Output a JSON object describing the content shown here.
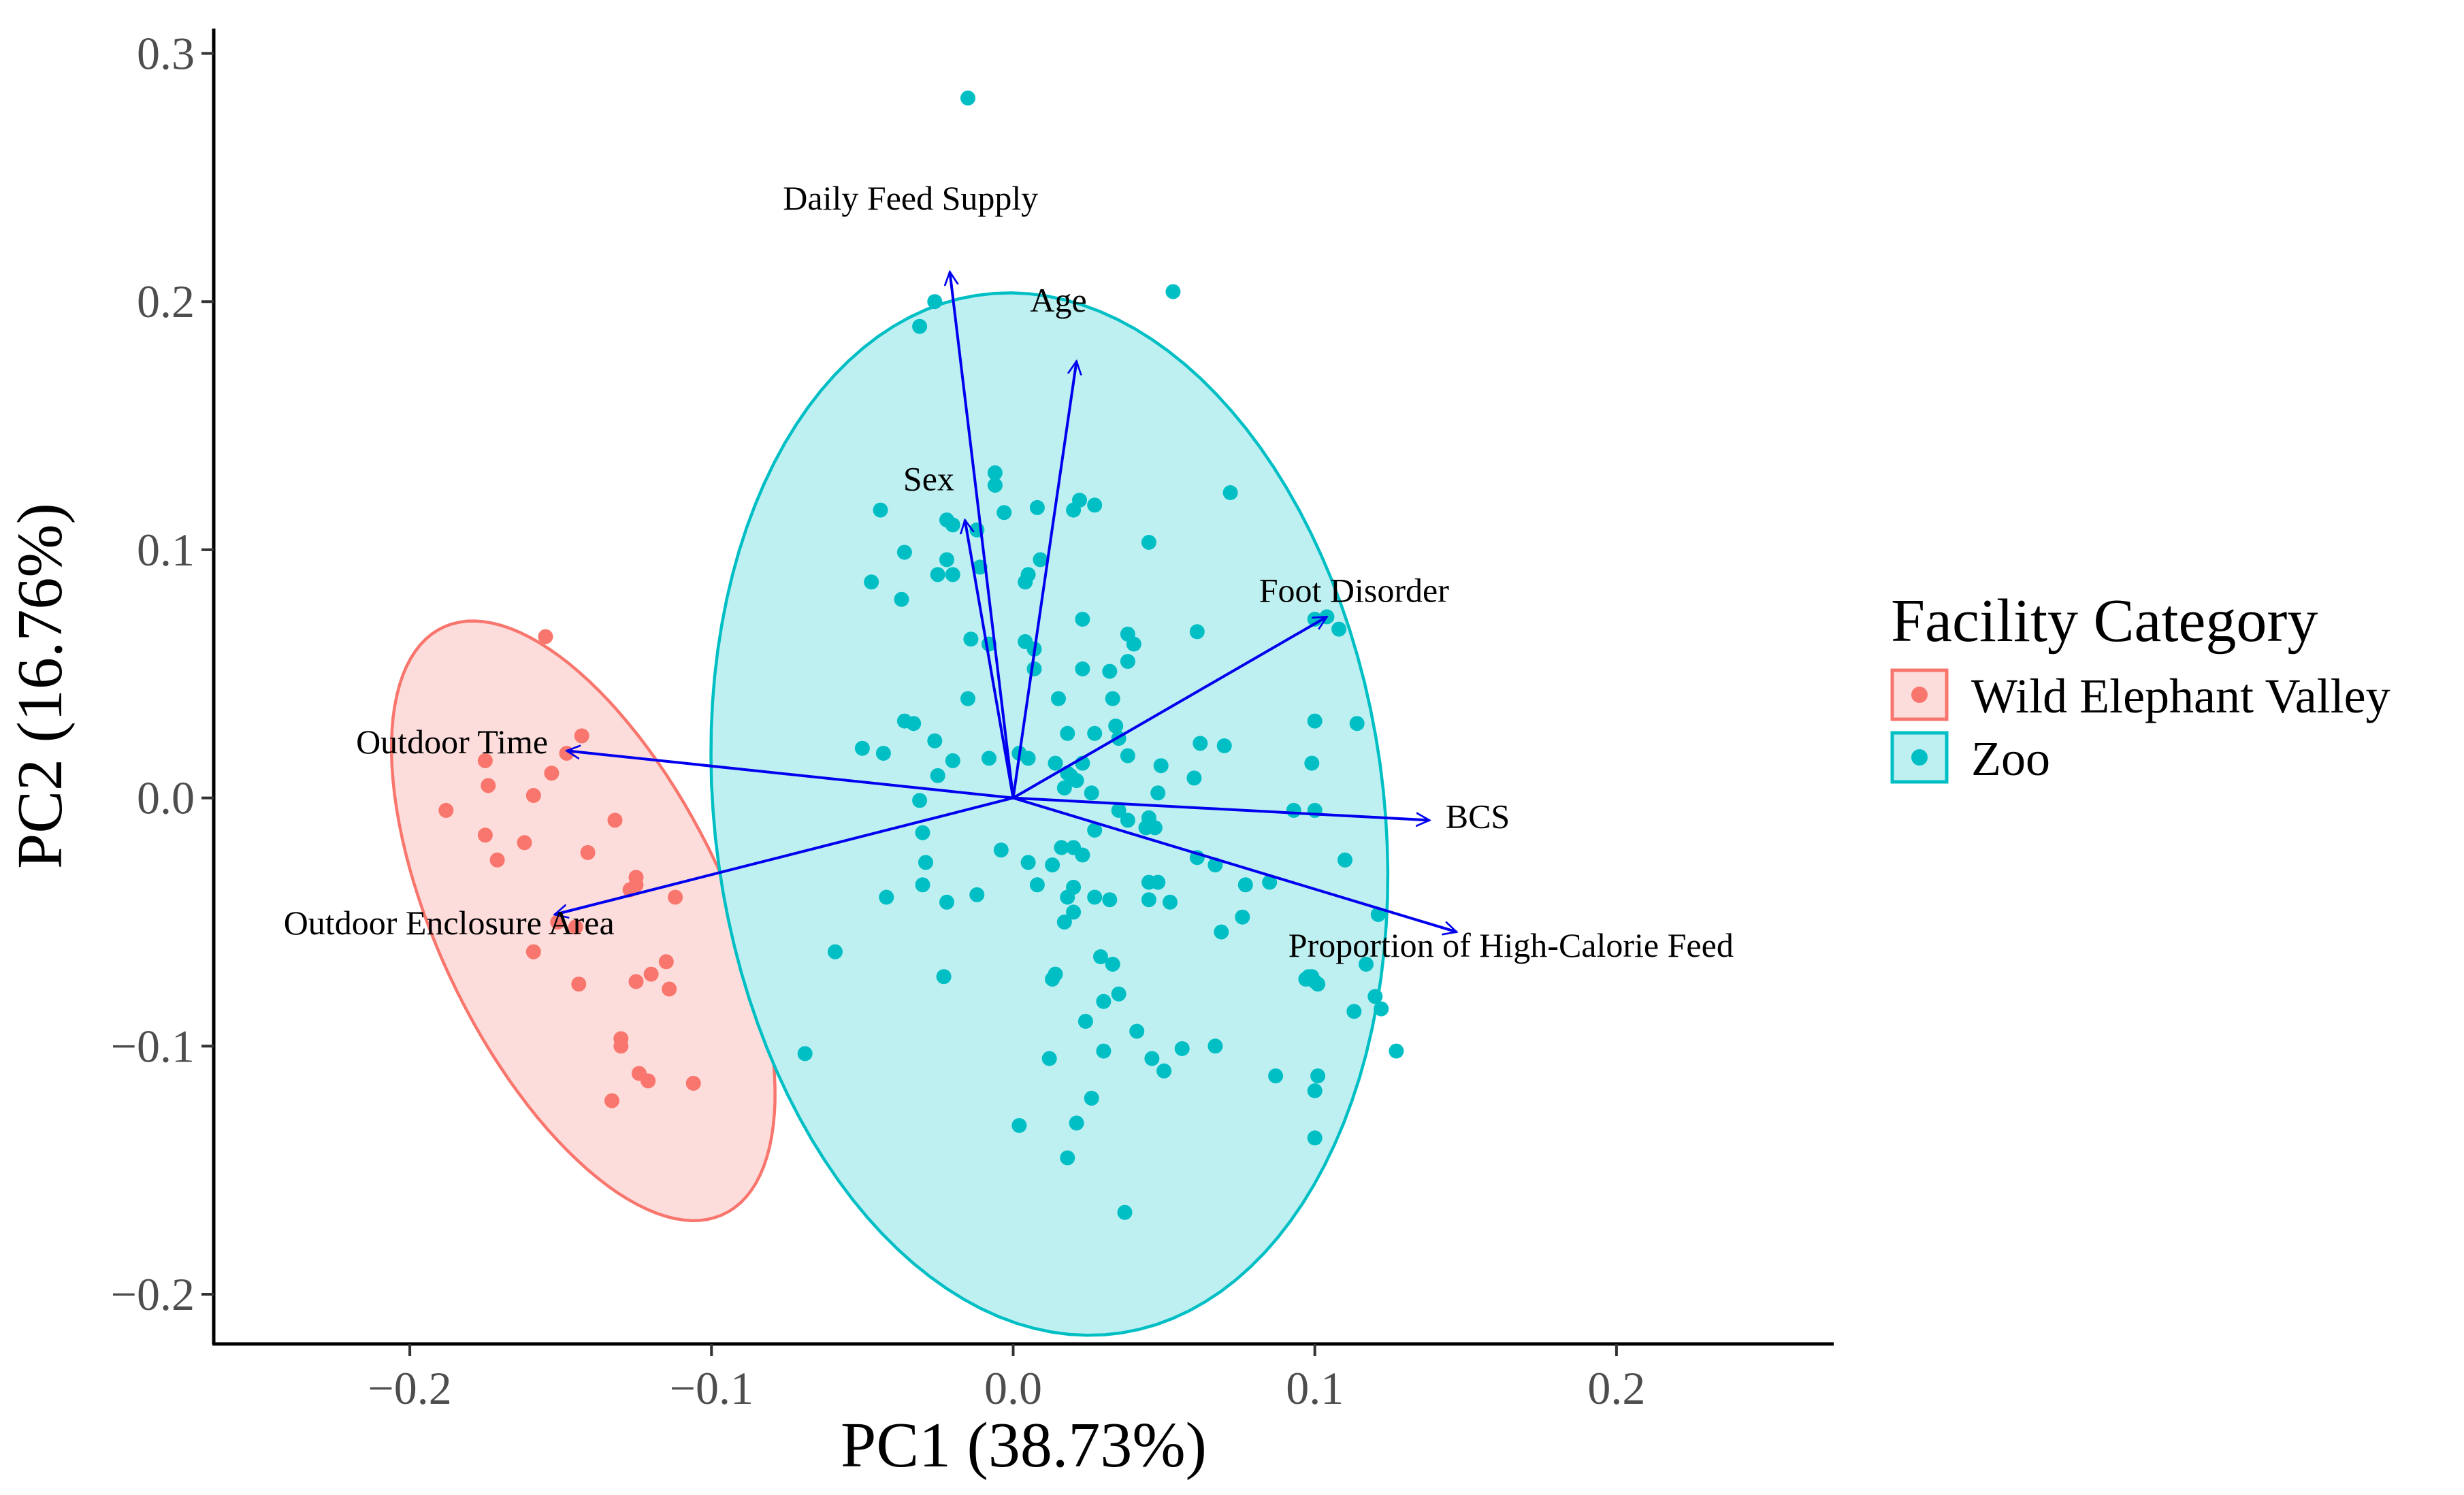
{
  "chart_data": {
    "type": "scatter",
    "subtype": "pca-biplot",
    "title": "",
    "xlabel": "PC1 (38.73%)",
    "ylabel": "PC2 (16.76%)",
    "xlim": [
      -0.265,
      0.272
    ],
    "ylim": [
      -0.22,
      0.31
    ],
    "x_ticks": [
      -0.2,
      -0.1,
      0.0,
      0.1,
      0.2
    ],
    "x_tick_labels": [
      "−0.2",
      "−0.1",
      "0.0",
      "0.1",
      "0.2"
    ],
    "y_ticks": [
      -0.2,
      -0.1,
      0.0,
      0.1,
      0.2,
      0.3
    ],
    "y_tick_labels": [
      "−0.2",
      "−0.1",
      "0.0",
      "0.1",
      "0.2",
      "0.3"
    ],
    "grid": false,
    "legend": {
      "title": "Facility Category",
      "position": "right"
    },
    "series": [
      {
        "name": "Wild Elephant Valley",
        "color": "#F8766D",
        "fill": "#FDDDDB",
        "ellipse": {
          "cx": -0.1425,
          "cy": -0.0495,
          "a": 0.1273,
          "b": 0.0493,
          "angle_deg": -70.0
        },
        "points": [
          [
            -0.155,
            0.065
          ],
          [
            -0.143,
            0.025
          ],
          [
            -0.148,
            0.018
          ],
          [
            -0.153,
            0.01
          ],
          [
            -0.175,
            0.015
          ],
          [
            -0.159,
            0.001
          ],
          [
            -0.174,
            0.005
          ],
          [
            -0.188,
            -0.005
          ],
          [
            -0.132,
            -0.009
          ],
          [
            -0.175,
            -0.015
          ],
          [
            -0.162,
            -0.018
          ],
          [
            -0.141,
            -0.022
          ],
          [
            -0.171,
            -0.025
          ],
          [
            -0.125,
            -0.032
          ],
          [
            -0.125,
            -0.035
          ],
          [
            -0.127,
            -0.037
          ],
          [
            -0.112,
            -0.04
          ],
          [
            -0.151,
            -0.05
          ],
          [
            -0.145,
            -0.052
          ],
          [
            -0.159,
            -0.062
          ],
          [
            -0.115,
            -0.066
          ],
          [
            -0.12,
            -0.071
          ],
          [
            -0.125,
            -0.074
          ],
          [
            -0.144,
            -0.075
          ],
          [
            -0.114,
            -0.077
          ],
          [
            -0.13,
            -0.097
          ],
          [
            -0.13,
            -0.1
          ],
          [
            -0.124,
            -0.111
          ],
          [
            -0.106,
            -0.115
          ],
          [
            -0.121,
            -0.114
          ],
          [
            -0.133,
            -0.122
          ]
        ]
      },
      {
        "name": "Zoo",
        "color": "#00BFC4",
        "fill": "#BEF0F2",
        "ellipse": {
          "cx": 0.012,
          "cy": -0.0065,
          "a": 0.2106,
          "b": 0.1111,
          "angle_deg": 95.0
        },
        "points": [
          [
            -0.015,
            0.282
          ],
          [
            0.053,
            0.204
          ],
          [
            -0.026,
            0.2
          ],
          [
            -0.031,
            0.19
          ],
          [
            -0.006,
            0.131
          ],
          [
            -0.006,
            0.126
          ],
          [
            0.072,
            0.123
          ],
          [
            0.022,
            0.12
          ],
          [
            0.027,
            0.118
          ],
          [
            0.02,
            0.116
          ],
          [
            -0.044,
            0.116
          ],
          [
            0.008,
            0.117
          ],
          [
            -0.003,
            0.115
          ],
          [
            -0.022,
            0.112
          ],
          [
            -0.02,
            0.11
          ],
          [
            -0.012,
            0.108
          ],
          [
            0.045,
            0.103
          ],
          [
            -0.036,
            0.099
          ],
          [
            -0.022,
            0.096
          ],
          [
            0.009,
            0.096
          ],
          [
            -0.011,
            0.093
          ],
          [
            -0.02,
            0.09
          ],
          [
            -0.025,
            0.09
          ],
          [
            0.005,
            0.09
          ],
          [
            0.004,
            0.087
          ],
          [
            -0.047,
            0.087
          ],
          [
            -0.037,
            0.08
          ],
          [
            0.023,
            0.072
          ],
          [
            0.1,
            0.072
          ],
          [
            0.104,
            0.073
          ],
          [
            0.108,
            0.068
          ],
          [
            0.061,
            0.067
          ],
          [
            0.038,
            0.066
          ],
          [
            -0.014,
            0.064
          ],
          [
            0.004,
            0.063
          ],
          [
            -0.008,
            0.062
          ],
          [
            0.04,
            0.062
          ],
          [
            0.007,
            0.06
          ],
          [
            0.038,
            0.055
          ],
          [
            0.023,
            0.052
          ],
          [
            0.007,
            0.052
          ],
          [
            0.032,
            0.051
          ],
          [
            0.033,
            0.04
          ],
          [
            0.015,
            0.04
          ],
          [
            -0.015,
            0.04
          ],
          [
            0.1,
            0.031
          ],
          [
            0.114,
            0.03
          ],
          [
            -0.033,
            0.03
          ],
          [
            -0.036,
            0.031
          ],
          [
            0.034,
            0.029
          ],
          [
            0.027,
            0.026
          ],
          [
            0.018,
            0.026
          ],
          [
            0.035,
            0.024
          ],
          [
            -0.026,
            0.023
          ],
          [
            0.062,
            0.022
          ],
          [
            0.07,
            0.021
          ],
          [
            -0.05,
            0.02
          ],
          [
            -0.043,
            0.018
          ],
          [
            0.002,
            0.018
          ],
          [
            0.038,
            0.017
          ],
          [
            -0.02,
            0.015
          ],
          [
            -0.008,
            0.016
          ],
          [
            0.005,
            0.016
          ],
          [
            0.014,
            0.014
          ],
          [
            0.023,
            0.014
          ],
          [
            0.099,
            0.014
          ],
          [
            0.049,
            0.013
          ],
          [
            0.018,
            0.01
          ],
          [
            0.019,
            0.009
          ],
          [
            -0.025,
            0.009
          ],
          [
            0.06,
            0.008
          ],
          [
            0.021,
            0.007
          ],
          [
            0.017,
            0.004
          ],
          [
            0.026,
            0.002
          ],
          [
            0.048,
            0.002
          ],
          [
            -0.031,
            -0.001
          ],
          [
            0.035,
            -0.005
          ],
          [
            0.038,
            -0.009
          ],
          [
            0.045,
            -0.008
          ],
          [
            0.1,
            -0.005
          ],
          [
            0.093,
            -0.005
          ],
          [
            0.044,
            -0.012
          ],
          [
            0.047,
            -0.012
          ],
          [
            0.027,
            -0.013
          ],
          [
            -0.03,
            -0.014
          ],
          [
            0.016,
            -0.02
          ],
          [
            0.02,
            -0.02
          ],
          [
            -0.004,
            -0.021
          ],
          [
            0.023,
            -0.023
          ],
          [
            0.061,
            -0.024
          ],
          [
            -0.029,
            -0.026
          ],
          [
            0.005,
            -0.026
          ],
          [
            0.013,
            -0.027
          ],
          [
            0.11,
            -0.025
          ],
          [
            0.067,
            -0.027
          ],
          [
            0.048,
            -0.034
          ],
          [
            0.045,
            -0.034
          ],
          [
            0.077,
            -0.035
          ],
          [
            0.085,
            -0.034
          ],
          [
            -0.03,
            -0.035
          ],
          [
            0.008,
            -0.035
          ],
          [
            0.02,
            -0.036
          ],
          [
            0.027,
            -0.04
          ],
          [
            0.018,
            -0.04
          ],
          [
            -0.012,
            -0.039
          ],
          [
            -0.042,
            -0.04
          ],
          [
            -0.022,
            -0.042
          ],
          [
            0.032,
            -0.041
          ],
          [
            0.052,
            -0.042
          ],
          [
            0.045,
            -0.041
          ],
          [
            0.02,
            -0.046
          ],
          [
            0.076,
            -0.048
          ],
          [
            0.121,
            -0.047
          ],
          [
            0.069,
            -0.054
          ],
          [
            0.017,
            -0.05
          ],
          [
            -0.059,
            -0.062
          ],
          [
            0.029,
            -0.064
          ],
          [
            0.117,
            -0.067
          ],
          [
            0.033,
            -0.067
          ],
          [
            0.014,
            -0.071
          ],
          [
            -0.023,
            -0.072
          ],
          [
            0.101,
            -0.075
          ],
          [
            0.097,
            -0.073
          ],
          [
            0.1,
            -0.074
          ],
          [
            0.099,
            -0.072
          ],
          [
            0.035,
            -0.079
          ],
          [
            0.098,
            -0.072
          ],
          [
            0.013,
            -0.073
          ],
          [
            0.03,
            -0.082
          ],
          [
            0.12,
            -0.08
          ],
          [
            0.113,
            -0.086
          ],
          [
            0.122,
            -0.085
          ],
          [
            0.024,
            -0.09
          ],
          [
            0.041,
            -0.094
          ],
          [
            0.03,
            -0.102
          ],
          [
            0.056,
            -0.101
          ],
          [
            0.067,
            -0.1
          ],
          [
            0.127,
            -0.102
          ],
          [
            0.012,
            -0.105
          ],
          [
            0.046,
            -0.105
          ],
          [
            -0.069,
            -0.103
          ],
          [
            0.087,
            -0.112
          ],
          [
            0.101,
            -0.112
          ],
          [
            0.05,
            -0.11
          ],
          [
            0.1,
            -0.118
          ],
          [
            0.026,
            -0.121
          ],
          [
            0.021,
            -0.131
          ],
          [
            0.002,
            -0.132
          ],
          [
            0.1,
            -0.137
          ],
          [
            0.018,
            -0.145
          ],
          [
            0.037,
            -0.167
          ]
        ]
      }
    ],
    "loadings": {
      "color": "#0000EE",
      "vectors": [
        {
          "name": "Daily Feed Supply",
          "x": -0.021,
          "y": 0.212,
          "label_x": -0.034,
          "label_y": 0.237
        },
        {
          "name": "Age",
          "x": 0.021,
          "y": 0.176,
          "label_x": 0.015,
          "label_y": 0.196
        },
        {
          "name": "Sex",
          "x": -0.016,
          "y": 0.112,
          "label_x": -0.028,
          "label_y": 0.124
        },
        {
          "name": "Foot Disorder",
          "x": 0.104,
          "y": 0.073,
          "label_x": 0.113,
          "label_y": 0.079
        },
        {
          "name": "Outdoor Time",
          "x": -0.148,
          "y": 0.019,
          "label_x": -0.186,
          "label_y": 0.018
        },
        {
          "name": "BCS",
          "x": 0.138,
          "y": -0.009,
          "label_x": 0.154,
          "label_y": -0.012
        },
        {
          "name": "Outdoor Enclosure Area",
          "x": -0.152,
          "y": -0.047,
          "label_x": -0.187,
          "label_y": -0.055
        },
        {
          "name": "Proportion of High-Calorie Feed",
          "x": 0.147,
          "y": -0.054,
          "label_x": 0.165,
          "label_y": -0.064
        }
      ]
    }
  }
}
